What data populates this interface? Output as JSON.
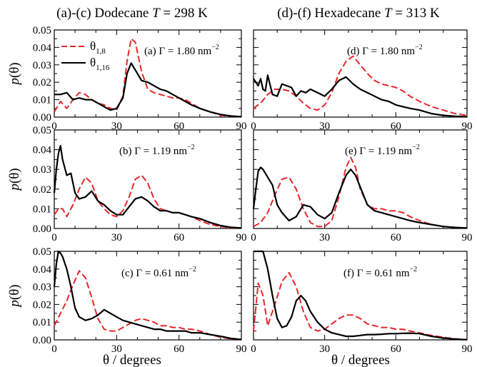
{
  "figure": {
    "left_title": {
      "prefix": "(a)-(c) Dodecane ",
      "var": "T",
      "suffix": " = 298 K"
    },
    "right_title": {
      "prefix": "(d)-(f) Hexadecane ",
      "var": "T",
      "suffix": " = 313 K"
    },
    "ylabel_main": "p",
    "ylabel_arg": "(θ)",
    "xlabel": "θ / degrees",
    "legend": {
      "red_label": "θ",
      "red_sub": "1,8",
      "black_label": "θ",
      "black_sub": "1,16"
    },
    "colors": {
      "red": "#e8262a",
      "black": "#000000"
    }
  },
  "chart_data": [
    {
      "type": "line",
      "panel": "(a)",
      "annotation": "(a) Γ = 1.80 nm",
      "annotation_sup": "−2",
      "xlim": [
        0,
        90
      ],
      "ylim": [
        0,
        0.05
      ],
      "xticks": [
        "0",
        "30",
        "60",
        "90"
      ],
      "yticks": [
        "0.00",
        "0.01",
        "0.02",
        "0.03",
        "0.04",
        "0.05"
      ],
      "legend_position": "top-left",
      "series": [
        {
          "name": "θ1,8",
          "color": "#e8262a",
          "style": "dashed",
          "x": [
            0,
            3,
            6,
            9,
            12,
            15,
            18,
            21,
            24,
            27,
            30,
            33,
            35,
            37,
            39,
            42,
            45,
            48,
            51,
            54,
            57,
            60,
            63,
            66,
            70,
            75,
            80,
            85,
            90
          ],
          "y": [
            0.003,
            0.009,
            0.005,
            0.01,
            0.014,
            0.013,
            0.01,
            0.008,
            0.007,
            0.005,
            0.004,
            0.012,
            0.032,
            0.045,
            0.043,
            0.026,
            0.016,
            0.014,
            0.013,
            0.012,
            0.011,
            0.011,
            0.01,
            0.008,
            0.005,
            0.003,
            0.001,
            0.0005,
            0.0002
          ]
        },
        {
          "name": "θ1,16",
          "color": "#000000",
          "style": "solid",
          "x": [
            0,
            3,
            6,
            9,
            12,
            15,
            18,
            21,
            24,
            27,
            30,
            33,
            35,
            37,
            39,
            42,
            45,
            48,
            51,
            54,
            57,
            60,
            63,
            66,
            70,
            75,
            80,
            85,
            90
          ],
          "y": [
            0.013,
            0.013,
            0.014,
            0.01,
            0.011,
            0.01,
            0.01,
            0.008,
            0.006,
            0.004,
            0.005,
            0.011,
            0.025,
            0.031,
            0.027,
            0.021,
            0.02,
            0.018,
            0.016,
            0.015,
            0.013,
            0.011,
            0.009,
            0.007,
            0.005,
            0.003,
            0.0015,
            0.0006,
            0.0002
          ]
        }
      ]
    },
    {
      "type": "line",
      "panel": "(b)",
      "annotation": "(b) Γ = 1.19 nm",
      "annotation_sup": "−2",
      "xlim": [
        0,
        90
      ],
      "ylim": [
        0,
        0.05
      ],
      "xticks": [
        "0",
        "30",
        "60",
        "90"
      ],
      "yticks": [
        "0.00",
        "0.01",
        "0.02",
        "0.03",
        "0.04",
        "0.05"
      ],
      "series": [
        {
          "name": "θ1,8",
          "color": "#e8262a",
          "style": "dashed",
          "x": [
            0,
            2,
            4,
            6,
            9,
            12,
            15,
            18,
            21,
            24,
            27,
            30,
            33,
            36,
            39,
            42,
            45,
            48,
            51,
            54,
            57,
            60,
            63,
            66,
            70,
            75,
            80,
            85,
            90
          ],
          "y": [
            0.007,
            0.01,
            0.01,
            0.006,
            0.012,
            0.02,
            0.026,
            0.023,
            0.014,
            0.01,
            0.007,
            0.006,
            0.009,
            0.016,
            0.025,
            0.027,
            0.023,
            0.015,
            0.01,
            0.009,
            0.008,
            0.008,
            0.007,
            0.006,
            0.004,
            0.002,
            0.001,
            0.0004,
            0.0001
          ]
        },
        {
          "name": "θ1,16",
          "color": "#000000",
          "style": "solid",
          "x": [
            0,
            1,
            2,
            3,
            4,
            6,
            8,
            10,
            12,
            15,
            18,
            21,
            24,
            27,
            30,
            33,
            36,
            39,
            42,
            45,
            48,
            51,
            54,
            57,
            60,
            63,
            66,
            70,
            75,
            80,
            85,
            90
          ],
          "y": [
            0.018,
            0.03,
            0.038,
            0.042,
            0.035,
            0.027,
            0.028,
            0.018,
            0.015,
            0.016,
            0.019,
            0.014,
            0.012,
            0.009,
            0.007,
            0.007,
            0.011,
            0.015,
            0.016,
            0.014,
            0.011,
            0.009,
            0.009,
            0.008,
            0.008,
            0.007,
            0.006,
            0.005,
            0.003,
            0.0015,
            0.0006,
            0.0002
          ]
        }
      ]
    },
    {
      "type": "line",
      "panel": "(c)",
      "annotation": "(c) Γ = 0.61 nm",
      "annotation_sup": "−2",
      "xlim": [
        0,
        90
      ],
      "ylim": [
        0,
        0.05
      ],
      "xticks": [
        "0",
        "30",
        "60",
        "90"
      ],
      "yticks": [
        "0.00",
        "0.01",
        "0.02",
        "0.03",
        "0.04",
        "0.05"
      ],
      "series": [
        {
          "name": "θ1,8",
          "color": "#e8262a",
          "style": "dashed",
          "x": [
            0,
            3,
            6,
            9,
            12,
            15,
            18,
            21,
            24,
            27,
            30,
            33,
            36,
            39,
            42,
            45,
            48,
            51,
            54,
            57,
            60,
            63,
            66,
            70,
            75,
            80,
            85,
            90
          ],
          "y": [
            0.008,
            0.015,
            0.022,
            0.031,
            0.039,
            0.035,
            0.024,
            0.012,
            0.006,
            0.005,
            0.005,
            0.007,
            0.009,
            0.011,
            0.012,
            0.011,
            0.01,
            0.008,
            0.008,
            0.007,
            0.007,
            0.006,
            0.006,
            0.005,
            0.003,
            0.0015,
            0.0006,
            0.0002
          ]
        },
        {
          "name": "θ1,16",
          "color": "#000000",
          "style": "solid",
          "x": [
            0,
            1,
            2,
            3,
            4,
            6,
            8,
            10,
            12,
            15,
            18,
            21,
            24,
            27,
            30,
            33,
            36,
            39,
            42,
            45,
            48,
            51,
            54,
            57,
            60,
            63,
            66,
            70,
            75,
            80,
            85,
            90
          ],
          "y": [
            0.03,
            0.043,
            0.05,
            0.049,
            0.047,
            0.04,
            0.03,
            0.018,
            0.013,
            0.011,
            0.012,
            0.014,
            0.017,
            0.015,
            0.013,
            0.011,
            0.01,
            0.009,
            0.008,
            0.007,
            0.006,
            0.006,
            0.005,
            0.005,
            0.005,
            0.005,
            0.004,
            0.004,
            0.003,
            0.002,
            0.0008,
            0.0002
          ]
        }
      ]
    },
    {
      "type": "line",
      "panel": "(d)",
      "annotation": "(d) Γ = 1.80 nm",
      "annotation_sup": "−2",
      "xlim": [
        0,
        90
      ],
      "ylim": [
        0,
        0.05
      ],
      "xticks": [
        "0",
        "30",
        "60",
        "90"
      ],
      "yticks": [
        "0.00",
        "0.01",
        "0.02",
        "0.03",
        "0.04",
        "0.05"
      ],
      "series": [
        {
          "name": "θ1,8",
          "color": "#e8262a",
          "style": "dashed",
          "x": [
            0,
            3,
            6,
            9,
            12,
            15,
            18,
            21,
            24,
            27,
            30,
            33,
            36,
            39,
            42,
            45,
            48,
            51,
            54,
            57,
            60,
            63,
            66,
            70,
            75,
            80,
            85,
            90
          ],
          "y": [
            0.005,
            0.008,
            0.013,
            0.016,
            0.016,
            0.015,
            0.012,
            0.008,
            0.005,
            0.004,
            0.007,
            0.014,
            0.025,
            0.032,
            0.035,
            0.03,
            0.025,
            0.021,
            0.019,
            0.018,
            0.017,
            0.015,
            0.012,
            0.009,
            0.006,
            0.004,
            0.002,
            0.001
          ]
        },
        {
          "name": "θ1,16",
          "color": "#000000",
          "style": "solid",
          "x": [
            0,
            1,
            2,
            3,
            4,
            5,
            6,
            8,
            10,
            12,
            14,
            16,
            18,
            20,
            22,
            24,
            27,
            30,
            33,
            36,
            39,
            42,
            45,
            48,
            51,
            54,
            57,
            60,
            63,
            66,
            70,
            75,
            80,
            85,
            90
          ],
          "y": [
            0.022,
            0.02,
            0.018,
            0.022,
            0.016,
            0.015,
            0.024,
            0.013,
            0.012,
            0.019,
            0.018,
            0.017,
            0.012,
            0.015,
            0.014,
            0.016,
            0.014,
            0.012,
            0.016,
            0.021,
            0.023,
            0.019,
            0.016,
            0.014,
            0.012,
            0.01,
            0.009,
            0.007,
            0.006,
            0.005,
            0.004,
            0.002,
            0.001,
            0.0005,
            0.0002
          ]
        }
      ]
    },
    {
      "type": "line",
      "panel": "(e)",
      "annotation": "(e) Γ = 1.19 nm",
      "annotation_sup": "−2",
      "xlim": [
        0,
        90
      ],
      "ylim": [
        0,
        0.05
      ],
      "xticks": [
        "0",
        "30",
        "60",
        "90"
      ],
      "yticks": [
        "0.00",
        "0.01",
        "0.02",
        "0.03",
        "0.04",
        "0.05"
      ],
      "series": [
        {
          "name": "θ1,8",
          "color": "#e8262a",
          "style": "dashed",
          "x": [
            0,
            3,
            6,
            9,
            12,
            15,
            18,
            21,
            24,
            27,
            30,
            33,
            36,
            39,
            41,
            43,
            45,
            48,
            51,
            54,
            57,
            60,
            63,
            66,
            70,
            75,
            80,
            85,
            90
          ],
          "y": [
            0.001,
            0.003,
            0.008,
            0.017,
            0.025,
            0.026,
            0.02,
            0.01,
            0.003,
            0.001,
            0.001,
            0.004,
            0.016,
            0.031,
            0.036,
            0.031,
            0.02,
            0.012,
            0.01,
            0.01,
            0.009,
            0.009,
            0.008,
            0.006,
            0.004,
            0.002,
            0.001,
            0.0005,
            0.0002
          ]
        },
        {
          "name": "θ1,16",
          "color": "#000000",
          "style": "solid",
          "x": [
            0,
            1,
            2,
            3,
            4,
            6,
            8,
            10,
            12,
            15,
            18,
            21,
            24,
            27,
            30,
            33,
            36,
            39,
            41,
            43,
            45,
            48,
            51,
            54,
            57,
            60,
            63,
            66,
            70,
            75,
            80,
            85,
            90
          ],
          "y": [
            0.01,
            0.02,
            0.029,
            0.031,
            0.03,
            0.026,
            0.022,
            0.012,
            0.008,
            0.004,
            0.006,
            0.012,
            0.011,
            0.007,
            0.005,
            0.008,
            0.018,
            0.027,
            0.03,
            0.027,
            0.021,
            0.012,
            0.009,
            0.008,
            0.007,
            0.006,
            0.005,
            0.004,
            0.003,
            0.002,
            0.001,
            0.0005,
            0.0002
          ]
        }
      ]
    },
    {
      "type": "line",
      "panel": "(f)",
      "annotation": "(f) Γ = 0.61 nm",
      "annotation_sup": "−2",
      "xlim": [
        0,
        90
      ],
      "ylim": [
        0,
        0.05
      ],
      "xticks": [
        "0",
        "30",
        "60",
        "90"
      ],
      "yticks": [
        "0.00",
        "0.01",
        "0.02",
        "0.03",
        "0.04",
        "0.05"
      ],
      "series": [
        {
          "name": "θ1,8",
          "color": "#e8262a",
          "style": "dashed",
          "x": [
            0,
            2,
            4,
            6,
            9,
            12,
            15,
            18,
            21,
            24,
            27,
            30,
            33,
            36,
            39,
            42,
            45,
            48,
            51,
            54,
            57,
            60,
            63,
            66,
            70,
            75,
            80,
            85,
            90
          ],
          "y": [
            0.005,
            0.032,
            0.025,
            0.008,
            0.02,
            0.033,
            0.038,
            0.03,
            0.016,
            0.007,
            0.005,
            0.006,
            0.009,
            0.012,
            0.014,
            0.014,
            0.012,
            0.009,
            0.008,
            0.007,
            0.007,
            0.006,
            0.006,
            0.005,
            0.004,
            0.0025,
            0.0015,
            0.0006,
            0.0002
          ]
        },
        {
          "name": "θ1,16",
          "color": "#000000",
          "style": "solid",
          "x": [
            0,
            2,
            4,
            6,
            8,
            10,
            12,
            14,
            16,
            18,
            20,
            22,
            24,
            27,
            30,
            33,
            36,
            39,
            42,
            45,
            48,
            51,
            54,
            57,
            60,
            63,
            66,
            70,
            75,
            80,
            85,
            90
          ],
          "y": [
            0.052,
            0.051,
            0.052,
            0.04,
            0.025,
            0.012,
            0.007,
            0.008,
            0.013,
            0.022,
            0.025,
            0.022,
            0.016,
            0.01,
            0.006,
            0.004,
            0.003,
            0.002,
            0.002,
            0.0025,
            0.003,
            0.003,
            0.0032,
            0.0035,
            0.0035,
            0.0037,
            0.0038,
            0.0035,
            0.002,
            0.001,
            0.0004,
            0.0001
          ]
        }
      ]
    }
  ]
}
